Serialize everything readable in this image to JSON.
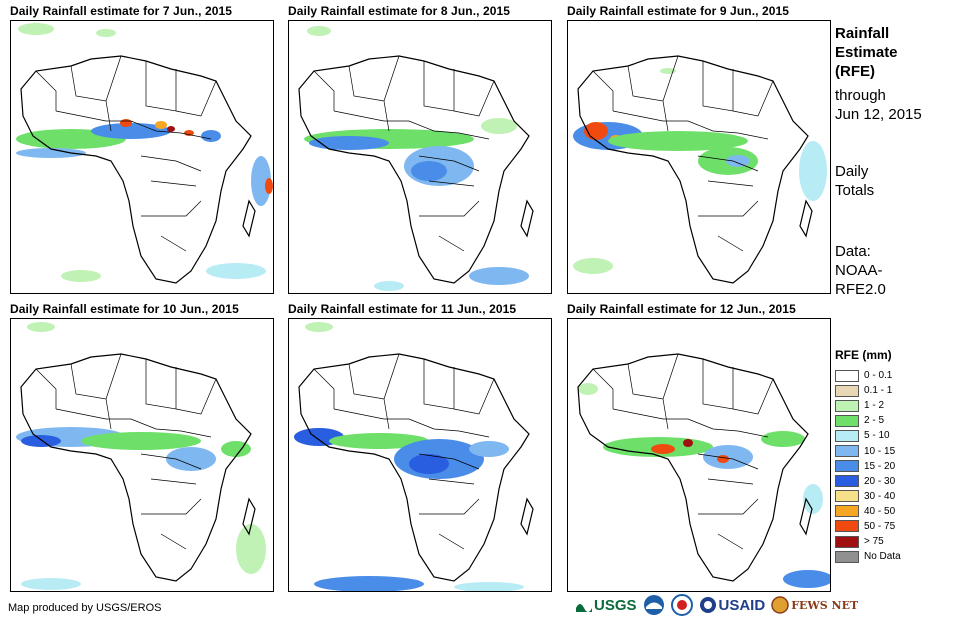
{
  "panels": [
    {
      "title": "Daily Rainfall estimate for 7 Jun., 2015"
    },
    {
      "title": "Daily Rainfall estimate for 8 Jun., 2015"
    },
    {
      "title": "Daily Rainfall estimate for 9 Jun., 2015"
    },
    {
      "title": "Daily Rainfall estimate for 10 Jun., 2015"
    },
    {
      "title": "Daily Rainfall estimate for 11 Jun., 2015"
    },
    {
      "title": "Daily Rainfall estimate for 12 Jun., 2015"
    }
  ],
  "sidebar": {
    "title_line1": "Rainfall",
    "title_line2": "Estimate",
    "title_line3": "(RFE)",
    "through_label": "through",
    "through_date": "Jun 12, 2015",
    "daily_line1": "Daily",
    "daily_line2": "Totals",
    "data_line1": "Data:",
    "data_line2": "NOAA-",
    "data_line3": "RFE2.0"
  },
  "legend": {
    "title": "RFE (mm)",
    "items": [
      {
        "label": "0 - 0.1",
        "color": "#ffffff"
      },
      {
        "label": "0.1 - 1",
        "color": "#e8d7b5"
      },
      {
        "label": "1 - 2",
        "color": "#bff2b4"
      },
      {
        "label": "2 - 5",
        "color": "#6ee06a"
      },
      {
        "label": "5 - 10",
        "color": "#b8ecf5"
      },
      {
        "label": "10 - 15",
        "color": "#7fb8f0"
      },
      {
        "label": "15 - 20",
        "color": "#4a8de8"
      },
      {
        "label": "20 - 30",
        "color": "#2a5ee0"
      },
      {
        "label": "30 - 40",
        "color": "#f7e08a"
      },
      {
        "label": "40 - 50",
        "color": "#f5a623"
      },
      {
        "label": "50 - 75",
        "color": "#f04a10"
      },
      {
        "label": "> 75",
        "color": "#a01010"
      },
      {
        "label": "No Data",
        "color": "#909090"
      }
    ]
  },
  "credit": "Map produced by USGS/EROS",
  "logos": {
    "usgs": "USGS",
    "usaid": "USAID",
    "fewsnet": "FEWS NET"
  }
}
